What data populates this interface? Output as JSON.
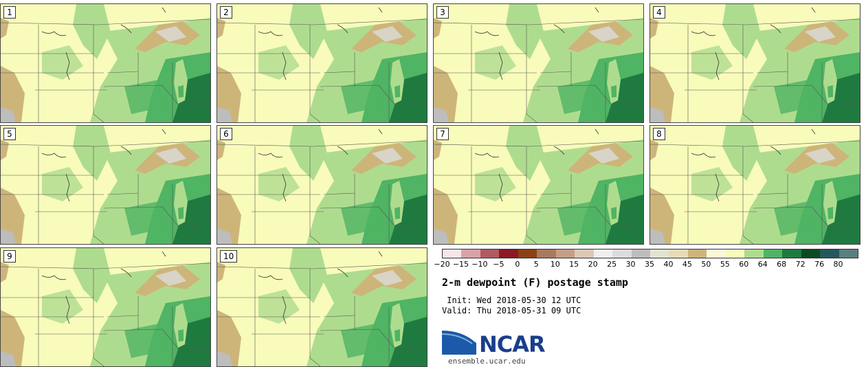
{
  "panels": [
    {
      "label": "1"
    },
    {
      "label": "2"
    },
    {
      "label": "3"
    },
    {
      "label": "4"
    },
    {
      "label": "5"
    },
    {
      "label": "6"
    },
    {
      "label": "7"
    },
    {
      "label": "8"
    },
    {
      "label": "9"
    },
    {
      "label": "10"
    }
  ],
  "colorbar": {
    "ticks": [
      "−20",
      "−15",
      "−10",
      "−5",
      "0",
      "5",
      "10",
      "15",
      "20",
      "25",
      "30",
      "35",
      "40",
      "45",
      "50",
      "55",
      "60",
      "64",
      "68",
      "72",
      "76",
      "80"
    ],
    "colors": [
      "#f6e6ea",
      "#d8a2a8",
      "#b05a62",
      "#8b1a22",
      "#8a4215",
      "#a87a5e",
      "#c59d86",
      "#ddc7b7",
      "#f0eeee",
      "#dcdcdc",
      "#bdbdbd",
      "#e3e3d3",
      "#e6dcb5",
      "#cdb57a",
      "#faf8d6",
      "#f8fbba",
      "#aedc8e",
      "#4fb463",
      "#1f7a40",
      "#0c4a22",
      "#24585c",
      "#5a7f80"
    ]
  },
  "title": "2-m dewpoint (F) postage stamp",
  "init": " Init: Wed 2018-05-30 12 UTC",
  "valid": "Valid: Thu 2018-05-31 09 UTC",
  "logo": {
    "text": "NCAR",
    "site": "ensemble.ucar.edu"
  }
}
